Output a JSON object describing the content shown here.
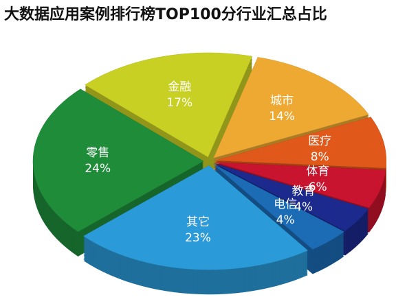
{
  "chart_data": {
    "type": "pie",
    "title": "大数据应用案例排行榜TOP100分行业汇总占比",
    "categories": [
      "城市",
      "医疗",
      "体育",
      "教育",
      "电信",
      "其它",
      "零售",
      "金融"
    ],
    "values": [
      14,
      8,
      6,
      4,
      4,
      23,
      24,
      17
    ],
    "value_labels": [
      "14%",
      "8%",
      "6%",
      "4%",
      "4%",
      "23%",
      "24%",
      "17%"
    ],
    "colors": [
      "#eea933",
      "#e0591b",
      "#c8142e",
      "#1c2a8e",
      "#1b6bb5",
      "#2a9ad8",
      "#1f8c3a",
      "#c9d024"
    ]
  }
}
